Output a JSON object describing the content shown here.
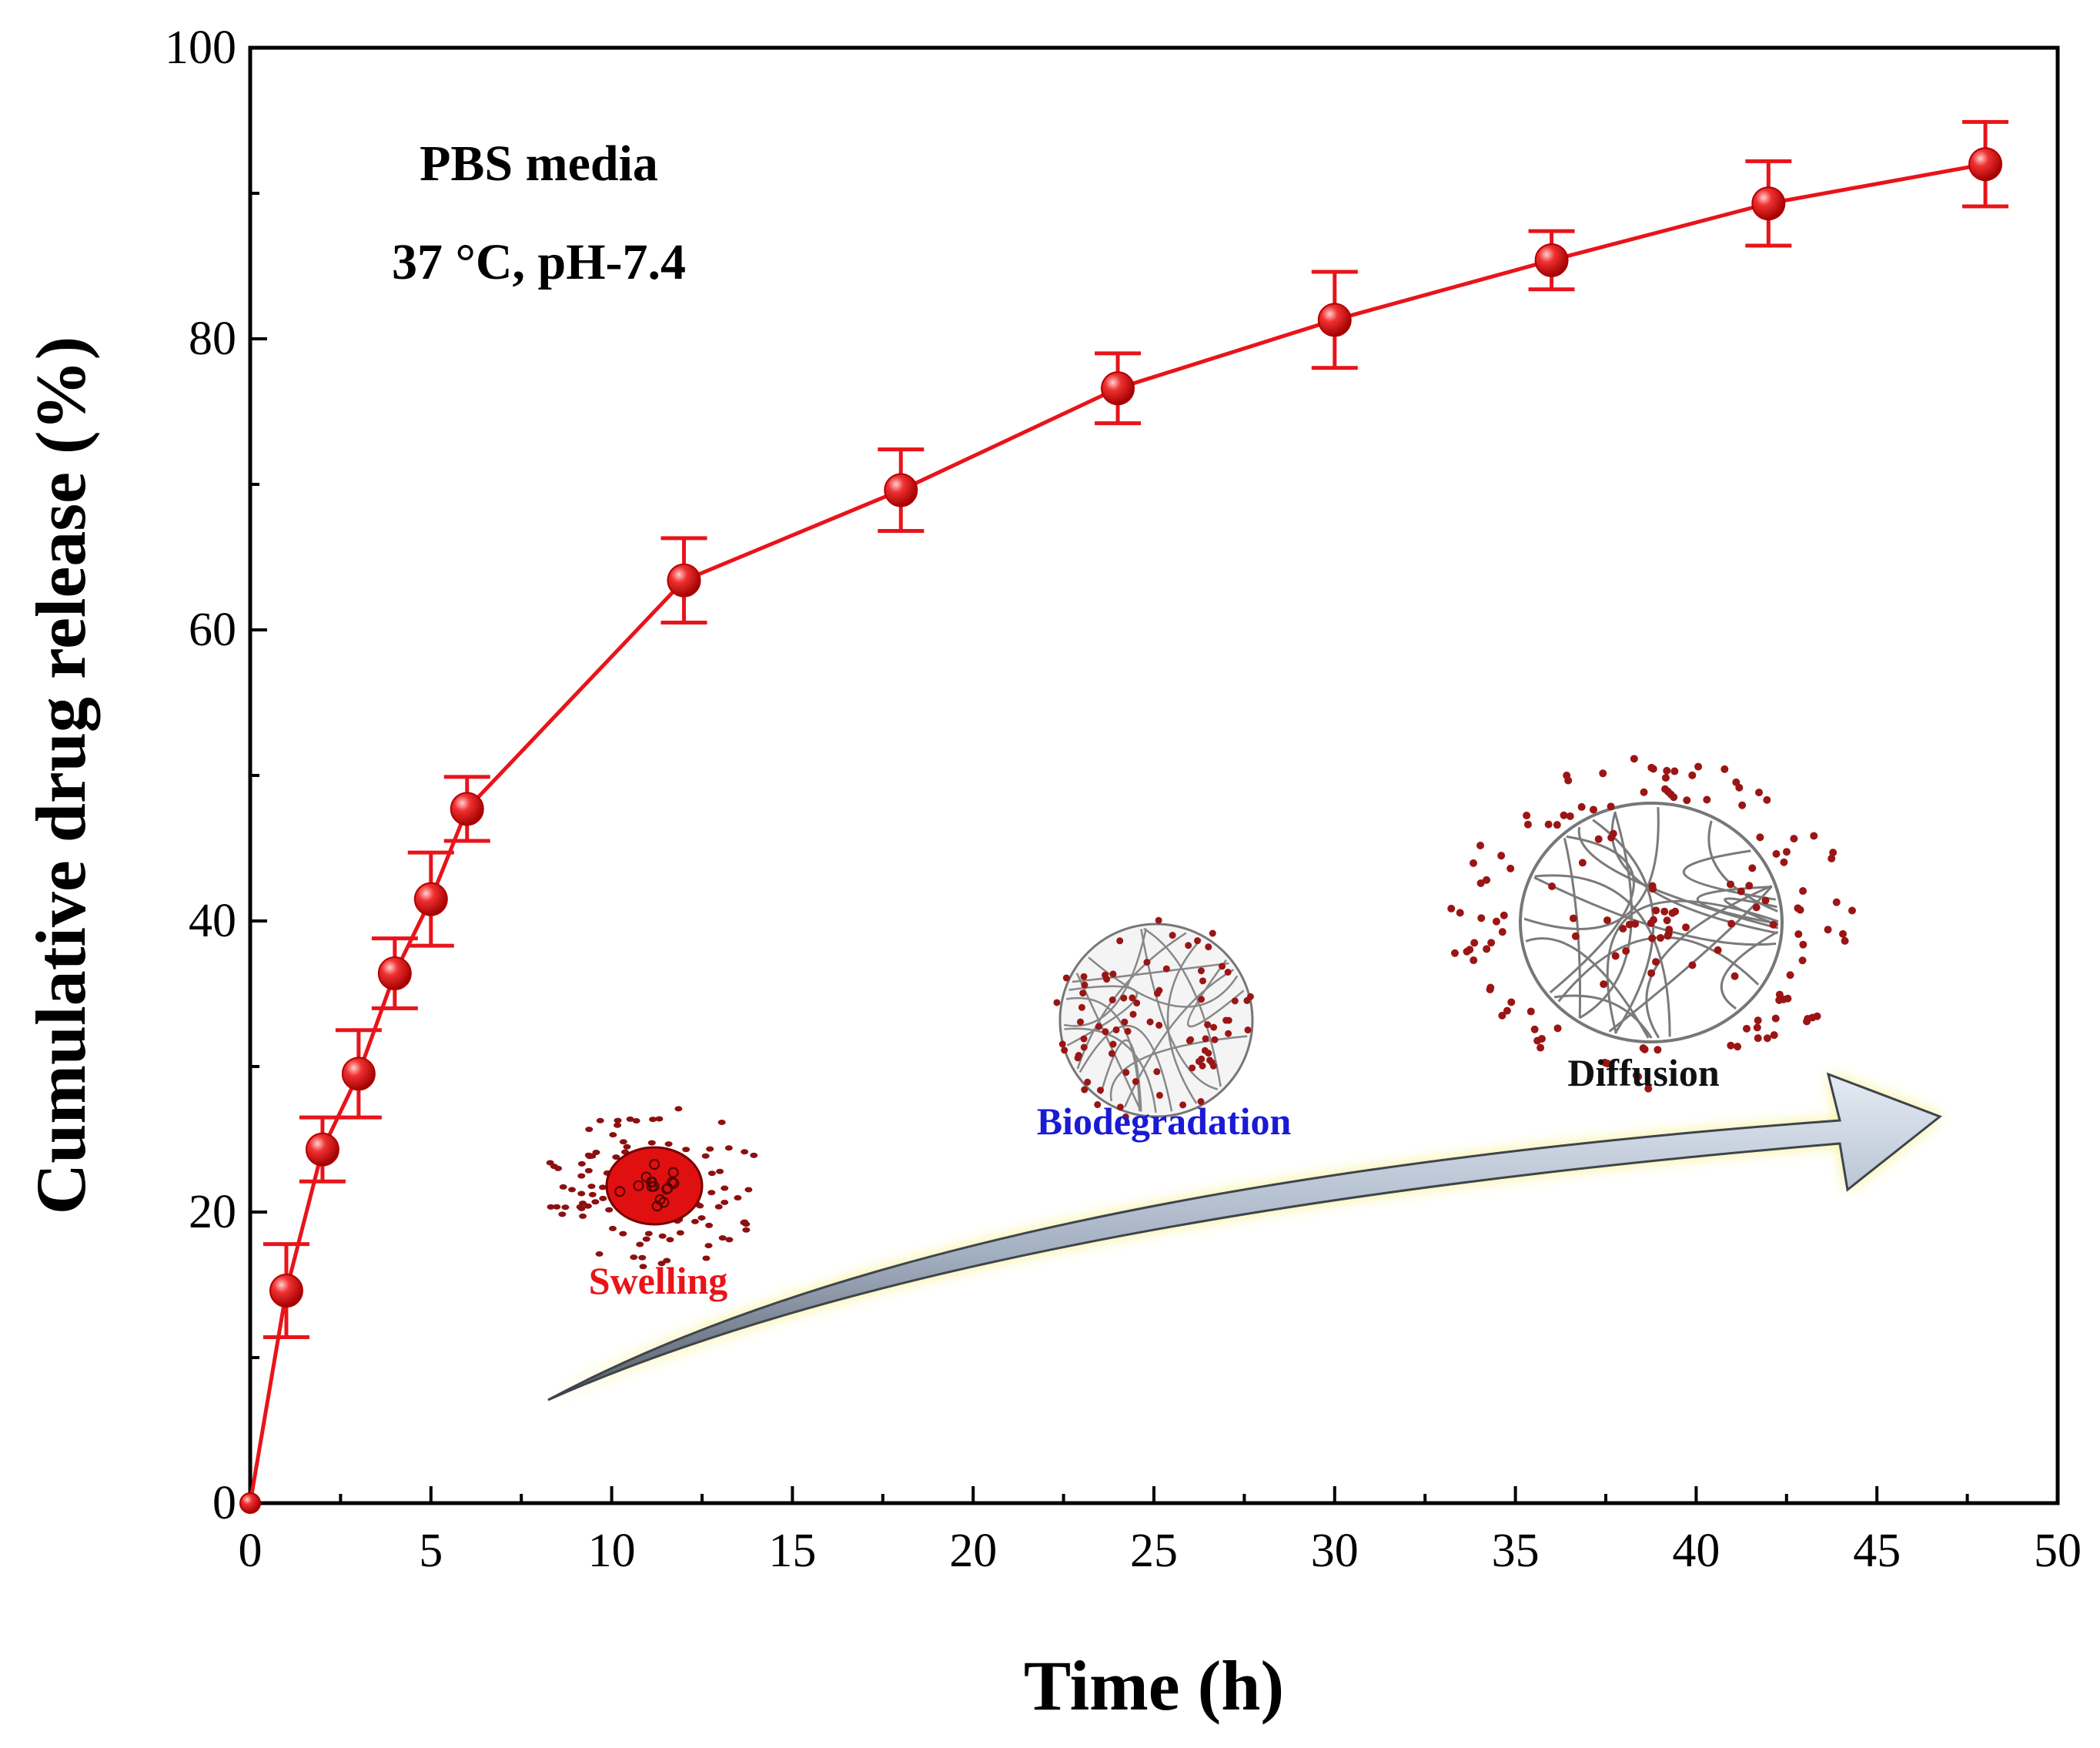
{
  "chart_data": {
    "type": "line",
    "title": "",
    "xlabel": "Time (h)",
    "ylabel": "Cumulative drug release (%)",
    "xlim": [
      0,
      50
    ],
    "ylim": [
      0,
      100
    ],
    "x_ticks": [
      0,
      5,
      10,
      15,
      20,
      25,
      30,
      35,
      40,
      45,
      50
    ],
    "y_ticks": [
      0,
      20,
      40,
      60,
      80,
      100
    ],
    "grid": false,
    "series": [
      {
        "name": "Cumulative drug release",
        "color": "#e8141a",
        "x": [
          0,
          1,
          2,
          3,
          4,
          5,
          6,
          12,
          18,
          24,
          30,
          36,
          42,
          48
        ],
        "y": [
          0,
          14.6,
          24.3,
          29.5,
          36.4,
          41.5,
          47.7,
          63.4,
          69.6,
          76.6,
          81.3,
          85.4,
          89.3,
          92.0
        ],
        "error": [
          0,
          3.2,
          2.2,
          3.0,
          2.4,
          3.2,
          2.2,
          2.9,
          2.8,
          2.4,
          3.3,
          2.0,
          2.9,
          2.9
        ]
      }
    ],
    "annotations": {
      "media": "PBS media",
      "conditions": "37 °C, pH-7.4"
    },
    "inset_stages": [
      {
        "label": "Swelling",
        "color": "#e8141a"
      },
      {
        "label": "Biodegradation",
        "color": "#1a1ad6"
      },
      {
        "label": "Diffusion",
        "color": "#111111"
      }
    ]
  }
}
